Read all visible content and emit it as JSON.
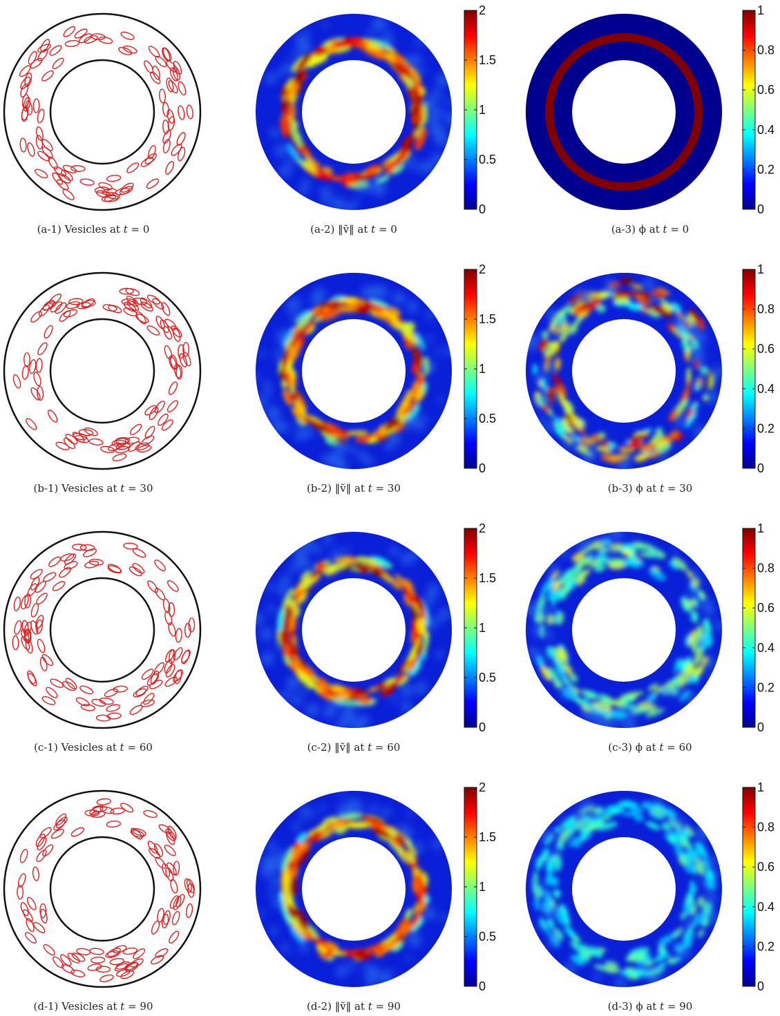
{
  "figure": {
    "rows": [
      {
        "id": "a",
        "time": "0",
        "captions": [
          "(a-1)  Vesicles at ",
          "(a-2)  ‖ṽ‖ at ",
          "(a-3)  ϕ at "
        ],
        "phi_pattern": "initial-ring"
      },
      {
        "id": "b",
        "time": "30",
        "captions": [
          "(b-1)  Vesicles at ",
          "(b-2)  ‖ṽ‖ at ",
          "(b-3)  ϕ at "
        ],
        "phi_pattern": "mixing"
      },
      {
        "id": "c",
        "time": "60",
        "captions": [
          "(c-1)  Vesicles at ",
          "(c-2)  ‖ṽ‖ at ",
          "(c-3)  ϕ at "
        ],
        "phi_pattern": "diffusing"
      },
      {
        "id": "d",
        "time": "90",
        "captions": [
          "(d-1)  Vesicles at ",
          "(d-2)  ‖ṽ‖ at ",
          "(d-3)  ϕ at "
        ],
        "phi_pattern": "mixed"
      }
    ],
    "t_symbol": "t",
    "equals": " = ",
    "velocity_colorbar": {
      "min": 0,
      "max": 2,
      "ticks": [
        "0",
        "0.5",
        "1",
        "1.5",
        "2"
      ]
    },
    "phi_colorbar": {
      "min": 0,
      "max": 1,
      "ticks": [
        "0",
        "0.2",
        "0.4",
        "0.6",
        "0.8",
        "1"
      ]
    },
    "colors": {
      "vesicle": "#e02020",
      "wall": "#111111",
      "jet_low": "#00008f",
      "jet_high": "#800000"
    }
  }
}
